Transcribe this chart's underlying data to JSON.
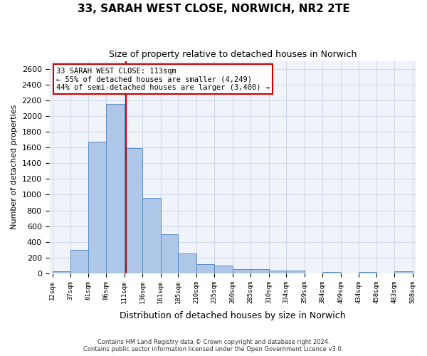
{
  "title_line1": "33, SARAH WEST CLOSE, NORWICH, NR2 2TE",
  "title_line2": "Size of property relative to detached houses in Norwich",
  "xlabel": "Distribution of detached houses by size in Norwich",
  "ylabel": "Number of detached properties",
  "footer_line1": "Contains HM Land Registry data © Crown copyright and database right 2024.",
  "footer_line2": "Contains public sector information licensed under the Open Government Licence v3.0.",
  "annotation_line1": "33 SARAH WEST CLOSE: 113sqm",
  "annotation_line2": "← 55% of detached houses are smaller (4,249)",
  "annotation_line3": "44% of semi-detached houses are larger (3,400) →",
  "bar_edges": [
    12,
    37,
    61,
    86,
    111,
    136,
    161,
    185,
    210,
    235,
    260,
    285,
    310,
    334,
    359,
    384,
    409,
    434,
    458,
    483,
    508
  ],
  "bar_heights": [
    25,
    300,
    1670,
    2150,
    1590,
    960,
    500,
    250,
    120,
    100,
    50,
    50,
    35,
    35,
    0,
    20,
    0,
    20,
    0,
    25
  ],
  "bar_color": "#aec6e8",
  "bar_edge_color": "#5a8fc3",
  "property_line_x": 113,
  "property_line_color": "#cc0000",
  "annotation_box_color": "#cc0000",
  "grid_color": "#d0d8e8",
  "background_color": "#f0f4fa",
  "ylim": [
    0,
    2700
  ],
  "yticks": [
    0,
    200,
    400,
    600,
    800,
    1000,
    1200,
    1400,
    1600,
    1800,
    2000,
    2200,
    2400,
    2600
  ]
}
